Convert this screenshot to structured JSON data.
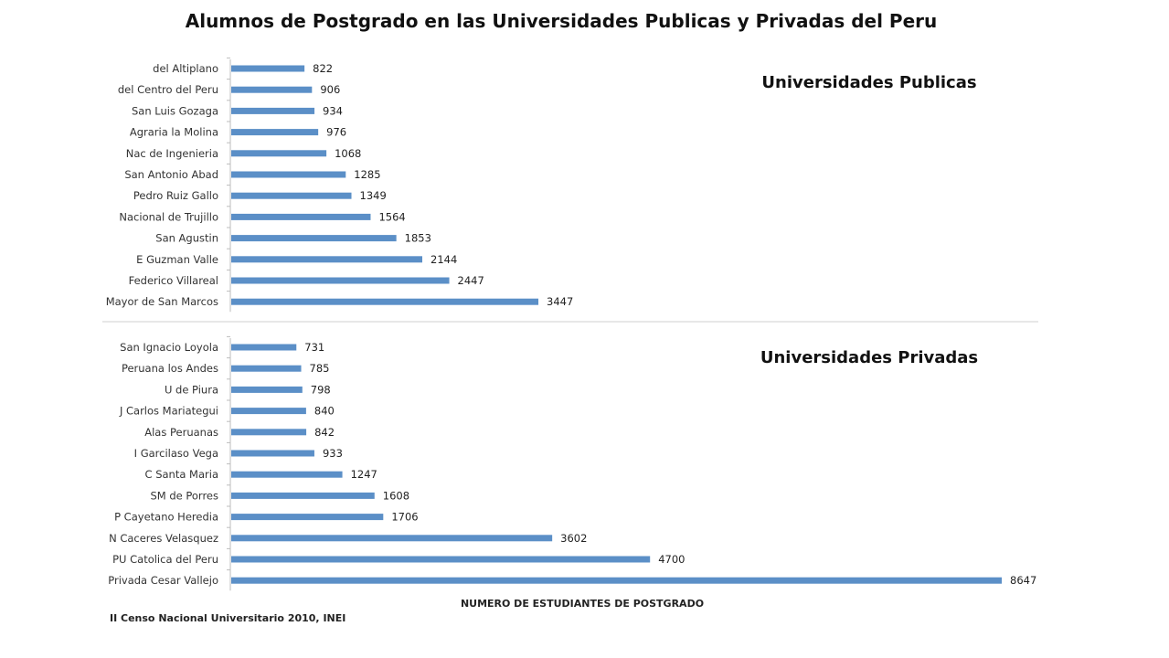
{
  "title": "Alumnos de Postgrado en las Universidades Publicas y Privadas del Peru",
  "xlabel": "NUMERO DE ESTUDIANTES DE POSTGRADO",
  "source": "II Censo Nacional Universitario 2010, INEI",
  "bar_color": "#5b8fc7",
  "chart_data": [
    {
      "type": "bar",
      "orientation": "horizontal",
      "title": "Universidades Publicas",
      "categories": [
        "del Altiplano",
        "del Centro del Peru",
        "San Luis Gozaga",
        "Agraria la Molina",
        "Nac de Ingenieria",
        "San Antonio Abad",
        "Pedro Ruiz Gallo",
        "Nacional de Trujillo",
        "San Agustin",
        "E Guzman Valle",
        "Federico Villareal",
        "Mayor de San Marcos"
      ],
      "values": [
        822,
        906,
        934,
        976,
        1068,
        1285,
        1349,
        1564,
        1853,
        2144,
        2447,
        3447
      ],
      "xlim": [
        0,
        8647
      ],
      "grid": false,
      "data_labels": true
    },
    {
      "type": "bar",
      "orientation": "horizontal",
      "title": "Universidades Privadas",
      "categories": [
        "San Ignacio Loyola",
        "Peruana los Andes",
        "U de Piura",
        "J Carlos Mariategui",
        "Alas Peruanas",
        "I Garcilaso Vega",
        "C Santa Maria",
        "SM de Porres",
        "P Cayetano Heredia",
        "N Caceres Velasquez",
        "PU Catolica del Peru",
        "Privada Cesar Vallejo"
      ],
      "values": [
        731,
        785,
        798,
        840,
        842,
        933,
        1247,
        1608,
        1706,
        3602,
        4700,
        8647
      ],
      "xlim": [
        0,
        8647
      ],
      "grid": false,
      "data_labels": true
    }
  ]
}
